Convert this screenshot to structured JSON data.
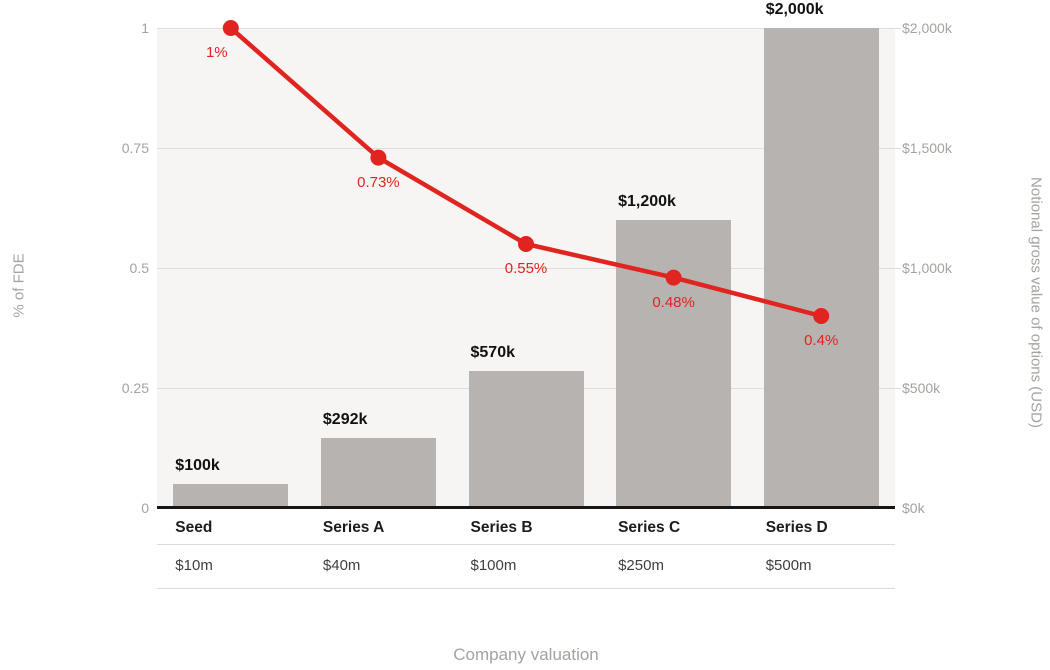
{
  "chart_data": {
    "type": "combo",
    "categories": [
      "Seed",
      "Series A",
      "Series B",
      "Series C",
      "Series D"
    ],
    "category_sublabels": [
      "$10m",
      "$40m",
      "$100m",
      "$250m",
      "$500m"
    ],
    "series": [
      {
        "name": "Notional gross value of options (USD)",
        "type": "bar",
        "axis": "right",
        "values": [
          100,
          292,
          570,
          1200,
          2000
        ],
        "labels": [
          "$100k",
          "$292k",
          "$570k",
          "$1,200k",
          "$2,000k"
        ],
        "color": "#b7b3b0"
      },
      {
        "name": "% of FDE",
        "type": "line",
        "axis": "left",
        "values": [
          1,
          0.73,
          0.55,
          0.48,
          0.4
        ],
        "labels": [
          "1%",
          "0.73%",
          "0.55%",
          "0.48%",
          "0.4%"
        ],
        "color": "#e02420"
      }
    ],
    "left_axis": {
      "label": "% of FDE",
      "ticks": [
        "1",
        "0.75",
        "0.5",
        "0.25",
        "0"
      ],
      "range": [
        0,
        1
      ]
    },
    "right_axis": {
      "label": "Notional gross value of options (USD)",
      "ticks": [
        "$2,000k",
        "$1,500k",
        "$1,000k",
        "$500k",
        "$0k"
      ],
      "range": [
        0,
        2000
      ]
    },
    "xlabel": "Company valuation",
    "grid": true,
    "legend": "none",
    "colors": {
      "bar": "#b7b3b0",
      "line": "#e02420",
      "plot_background": "#f6f5f3",
      "gridline": "#e0dedd",
      "axis_text": "#a5a29f",
      "baseline": "#161616"
    }
  }
}
